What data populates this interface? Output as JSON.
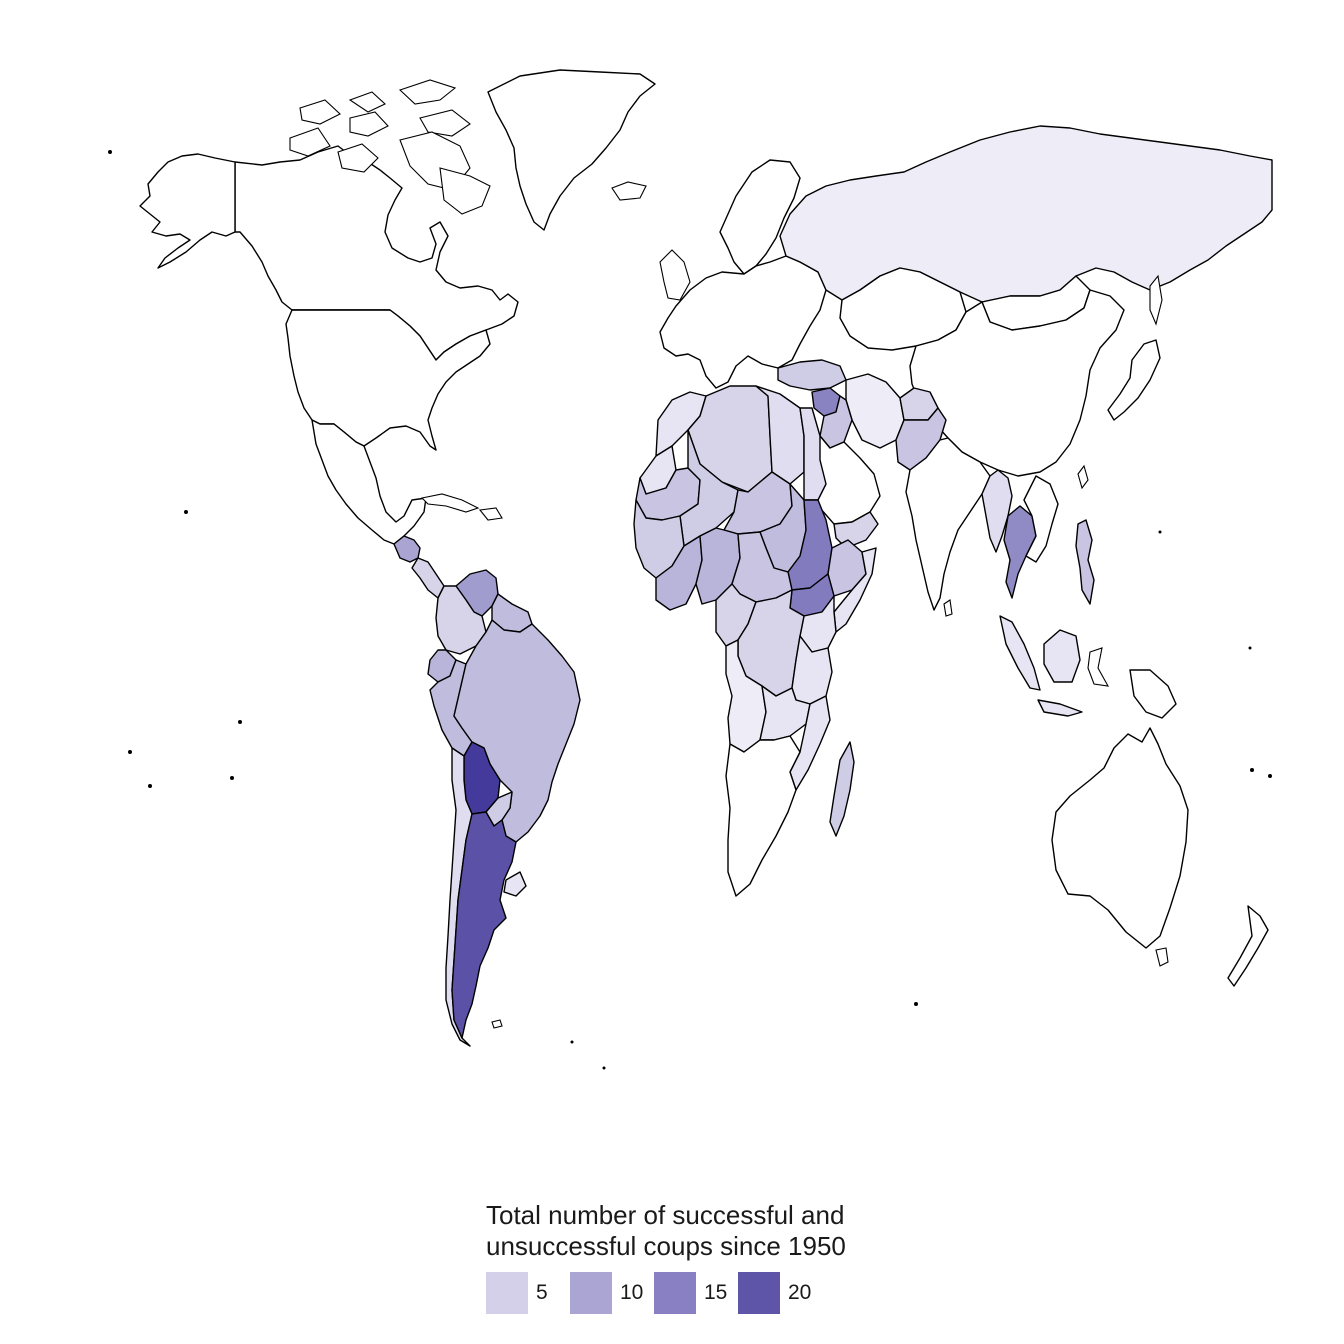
{
  "legend": {
    "title": "Total number of successful and\nunsuccessful coups since 1950",
    "keys": [
      {
        "label": "5",
        "value": 5,
        "color": "#d4d0e9"
      },
      {
        "label": "10",
        "value": 10,
        "color": "#aba5d3"
      },
      {
        "label": "15",
        "value": 15,
        "color": "#8880c2"
      },
      {
        "label": "20",
        "value": 20,
        "color": "#5e55a9"
      }
    ]
  },
  "scale": {
    "low": "#f6f5fb",
    "max": "#443a9c",
    "none": "#ffffff",
    "border": "#000000"
  },
  "regions": [
    {
      "name": "Russia",
      "coups": 1
    },
    {
      "name": "Greenland",
      "coups": 0
    },
    {
      "name": "Canada",
      "coups": 0
    },
    {
      "name": "United States",
      "coups": 0
    },
    {
      "name": "Mexico",
      "coups": 0
    },
    {
      "name": "Guatemala",
      "coups": 10
    },
    {
      "name": "Venezuela",
      "coups": 11
    },
    {
      "name": "Colombia",
      "coups": 4
    },
    {
      "name": "Ecuador",
      "coups": 8
    },
    {
      "name": "Peru",
      "coups": 7
    },
    {
      "name": "Brazil",
      "coups": 7
    },
    {
      "name": "Bolivia",
      "coups": 23
    },
    {
      "name": "Argentina",
      "coups": 20
    },
    {
      "name": "Chile",
      "coups": 3
    },
    {
      "name": "Paraguay",
      "coups": 5
    },
    {
      "name": "Uruguay",
      "coups": 2
    },
    {
      "name": "Morocco",
      "coups": 2
    },
    {
      "name": "Algeria",
      "coups": 4
    },
    {
      "name": "Libya",
      "coups": 3
    },
    {
      "name": "Egypt",
      "coups": 3
    },
    {
      "name": "Mauritania",
      "coups": 6
    },
    {
      "name": "Mali",
      "coups": 5
    },
    {
      "name": "Niger",
      "coups": 6
    },
    {
      "name": "Chad",
      "coups": 7
    },
    {
      "name": "Sudan",
      "coups": 15
    },
    {
      "name": "Ethiopia",
      "coups": 6
    },
    {
      "name": "Somalia",
      "coups": 2
    },
    {
      "name": "Nigeria",
      "coups": 8
    },
    {
      "name": "Central African Republic",
      "coups": 6
    },
    {
      "name": "DR Congo",
      "coups": 4
    },
    {
      "name": "Tanzania",
      "coups": 2
    },
    {
      "name": "Angola",
      "coups": 1
    },
    {
      "name": "Zambia",
      "coups": 2
    },
    {
      "name": "Madagascar",
      "coups": 5
    },
    {
      "name": "Turkey",
      "coups": 5
    },
    {
      "name": "Syria",
      "coups": 14
    },
    {
      "name": "Iraq",
      "coups": 6
    },
    {
      "name": "Iran",
      "coups": 1
    },
    {
      "name": "Afghanistan",
      "coups": 4
    },
    {
      "name": "Pakistan",
      "coups": 6
    },
    {
      "name": "Myanmar",
      "coups": 3
    },
    {
      "name": "Thailand",
      "coups": 13
    },
    {
      "name": "Philippines",
      "coups": 6
    },
    {
      "name": "Indonesia",
      "coups": 2
    },
    {
      "name": "Yemen",
      "coups": 4
    },
    {
      "name": "Saudi Arabia",
      "coups": 0
    },
    {
      "name": "India",
      "coups": 0
    },
    {
      "name": "China",
      "coups": 0
    },
    {
      "name": "Kazakhstan",
      "coups": 0
    },
    {
      "name": "Mongolia",
      "coups": 0
    },
    {
      "name": "Europe",
      "coups": 0
    },
    {
      "name": "Scandinavia",
      "coups": 0
    },
    {
      "name": "Southern Africa",
      "coups": 0
    },
    {
      "name": "Australia",
      "coups": 0
    },
    {
      "name": "New Zealand",
      "coups": 0
    },
    {
      "name": "Japan",
      "coups": 0
    },
    {
      "name": "Papua New Guinea",
      "coups": 0
    }
  ]
}
